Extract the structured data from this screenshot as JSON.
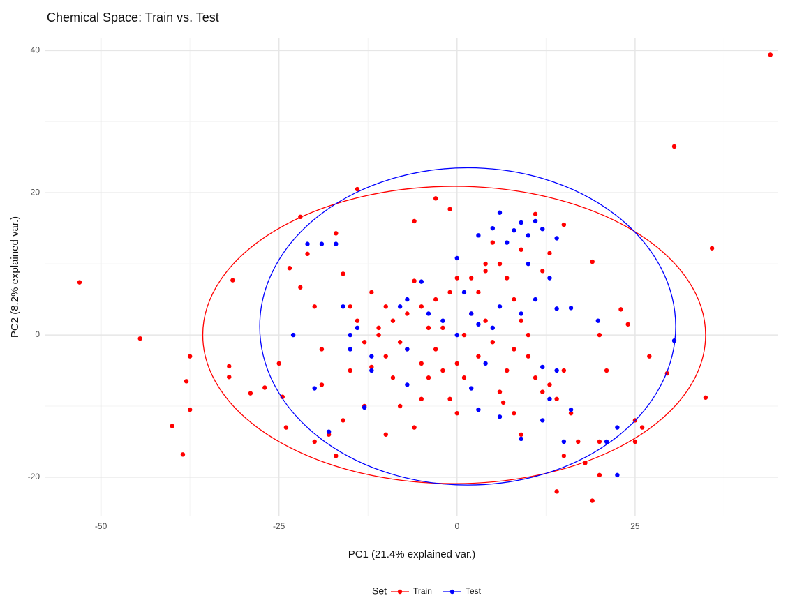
{
  "chart_data": {
    "type": "scatter",
    "title": "Chemical Space: Train vs. Test",
    "x_label": "PC1 (21.4% explained var.)",
    "y_label": "PC2 (8.2% explained var.)",
    "legend_title": "Set",
    "legend_position": "bottom",
    "grid": true,
    "xlim": [
      -57.8,
      45.1
    ],
    "ylim": [
      -25.5,
      41.7
    ],
    "xticks": [
      -50,
      -25,
      0,
      25
    ],
    "yticks": [
      -20,
      0,
      20,
      40
    ],
    "minor_xticks": [
      -37.5,
      -12.5,
      12.5,
      37.5
    ],
    "minor_yticks": [
      -10,
      10,
      30
    ],
    "series": [
      {
        "name": "Train",
        "color": "#ff0000",
        "ellipse": {
          "cx": -0.4,
          "cy": 0,
          "rx": 35.3,
          "ry": 20.9
        },
        "x": [
          44,
          30.5,
          35.8,
          34.9,
          -53,
          -44.5,
          -37.5,
          -38,
          -37.5,
          -40,
          -38.5,
          -31.5,
          -32,
          -32,
          -29,
          -27,
          -25,
          -24.5,
          -24,
          -23.5,
          -22,
          -21,
          -22,
          -20,
          -19,
          -19,
          -20,
          -18,
          -16,
          -17,
          -17,
          -14,
          -16,
          -15,
          -14,
          -13,
          -12,
          -15,
          -13,
          -10,
          -6,
          -8,
          -9,
          -10,
          -11,
          -10,
          -12,
          -11,
          -9,
          -8,
          -7,
          -6,
          -5,
          -4,
          -3,
          -2,
          -4,
          -5,
          -1,
          0,
          0,
          1,
          2,
          3,
          2,
          4,
          5,
          6,
          7,
          8,
          9,
          10,
          8,
          7,
          6,
          6.5,
          9,
          8,
          10,
          11,
          12,
          13,
          14,
          15,
          16,
          17,
          15,
          14,
          19,
          20,
          20,
          18,
          19,
          20,
          21,
          23,
          24,
          25,
          27,
          29.5,
          25,
          26,
          12,
          13,
          15,
          11,
          -6,
          -3,
          -1,
          -5,
          -7,
          1,
          3,
          4,
          5,
          -2,
          -3,
          -1,
          0,
          9,
          4
        ],
        "y": [
          39.4,
          26.5,
          12.2,
          -8.8,
          7.4,
          -0.5,
          -3,
          -6.5,
          -10.5,
          -12.8,
          -16.8,
          7.7,
          -4.4,
          -5.9,
          -8.2,
          -7.4,
          -4,
          -8.7,
          -13,
          9.4,
          16.6,
          11.4,
          6.7,
          4,
          -2,
          -7,
          -15,
          -14,
          -12,
          -17,
          14.3,
          20.5,
          8.6,
          4,
          2,
          -1,
          -4.5,
          -5,
          -10,
          -14,
          -13,
          -10,
          -6,
          -3,
          1,
          4,
          6,
          0,
          2,
          -1,
          3,
          7.6,
          4,
          1,
          -2,
          -5,
          -6,
          -9,
          -9,
          -11,
          -4,
          0,
          3,
          6,
          8,
          10,
          13,
          10,
          8,
          5,
          2,
          0,
          -2,
          -5,
          -8,
          -9.5,
          -14,
          -11,
          -3,
          -6,
          -8,
          -7,
          -9,
          -5,
          -11,
          -15,
          -17,
          -22,
          -23.3,
          -19.7,
          -15,
          -18,
          10.3,
          0,
          -5,
          3.6,
          1.5,
          -12,
          -3,
          -5.4,
          -15,
          -13,
          9,
          11.5,
          15.5,
          17,
          16,
          19.2,
          17.7,
          -4,
          -2,
          -6,
          -3,
          2,
          -1,
          1,
          5,
          6,
          8,
          12,
          9
        ]
      },
      {
        "name": "Test",
        "color": "#0000ff",
        "ellipse": {
          "cx": 1.5,
          "cy": 1.2,
          "rx": 29.2,
          "ry": 22.3
        },
        "x": [
          -23,
          -20,
          -21,
          -19,
          -17,
          -14,
          -15,
          -15,
          -13,
          -12,
          -8,
          -7,
          -7,
          -5,
          -4,
          -2,
          0,
          0,
          1,
          2,
          3,
          4,
          5,
          3,
          5,
          6,
          7,
          8,
          9,
          10,
          11,
          12,
          10,
          11,
          9,
          14,
          13,
          14,
          14,
          13,
          15,
          12,
          9,
          6,
          3,
          2,
          19.8,
          21,
          22.5,
          22.5,
          30.5,
          -18,
          -12,
          -16,
          16,
          12,
          16,
          -7,
          6
        ],
        "y": [
          0,
          -7.5,
          12.8,
          12.8,
          12.8,
          1,
          0,
          -2,
          -10.2,
          -5,
          4,
          -2,
          -7,
          7.5,
          3,
          2,
          0,
          10.8,
          6,
          3,
          1.5,
          -4,
          1,
          14,
          15,
          17.2,
          13,
          14.7,
          15.8,
          14,
          16,
          14.9,
          10,
          5,
          3,
          13.6,
          8,
          3.7,
          -5,
          -9,
          -15,
          -12,
          -14.6,
          -11.5,
          -10.5,
          -7.5,
          2,
          -15,
          -13,
          -19.7,
          -0.8,
          -13.6,
          -3,
          4,
          3.8,
          -4.5,
          -10.5,
          5,
          4
        ]
      }
    ]
  }
}
